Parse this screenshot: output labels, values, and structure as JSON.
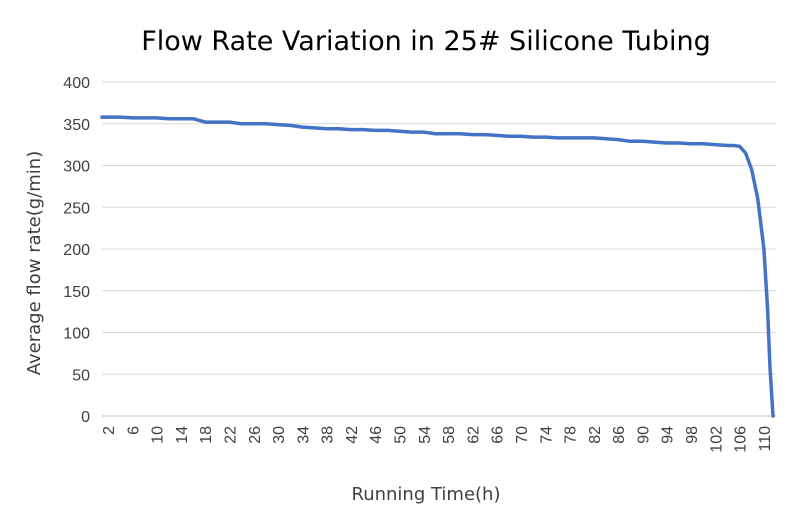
{
  "chart_data": {
    "type": "line",
    "title": "Flow Rate Variation in 25# Silicone Tubing",
    "xlabel": "Running Time(h)",
    "ylabel": "Average flow rate(g/min)",
    "ylim": [
      0,
      400
    ],
    "y_ticks": [
      0,
      50,
      100,
      150,
      200,
      250,
      300,
      350,
      400
    ],
    "x_ticks": [
      "2",
      "6",
      "10",
      "14",
      "18",
      "22",
      "26",
      "30",
      "34",
      "38",
      "42",
      "46",
      "50",
      "54",
      "58",
      "62",
      "66",
      "70",
      "74",
      "78",
      "82",
      "86",
      "90",
      "94",
      "98",
      "102",
      "106",
      "110"
    ],
    "xlim": [
      1,
      112
    ],
    "grid": "horizontal",
    "line_color": "#4472C4",
    "series": [
      {
        "x": [
          1,
          2,
          4,
          6,
          8,
          10,
          12,
          14,
          16,
          17,
          18,
          20,
          22,
          24,
          26,
          28,
          30,
          32,
          34,
          36,
          38,
          40,
          42,
          44,
          46,
          48,
          50,
          52,
          54,
          56,
          58,
          60,
          62,
          64,
          66,
          68,
          70,
          72,
          74,
          76,
          78,
          80,
          82,
          84,
          86,
          88,
          90,
          92,
          94,
          96,
          98,
          100,
          102,
          104,
          105,
          106,
          107,
          108,
          109,
          110,
          110.6,
          111,
          111.5
        ],
        "values": [
          358,
          358,
          358,
          357,
          357,
          357,
          356,
          356,
          356,
          354,
          352,
          352,
          352,
          350,
          350,
          350,
          349,
          348,
          346,
          345,
          344,
          344,
          343,
          343,
          342,
          342,
          341,
          340,
          340,
          338,
          338,
          338,
          337,
          337,
          336,
          335,
          335,
          334,
          334,
          333,
          333,
          333,
          333,
          332,
          331,
          329,
          329,
          328,
          327,
          327,
          326,
          326,
          325,
          324,
          324,
          323,
          315,
          295,
          260,
          200,
          130,
          60,
          0
        ]
      }
    ]
  }
}
